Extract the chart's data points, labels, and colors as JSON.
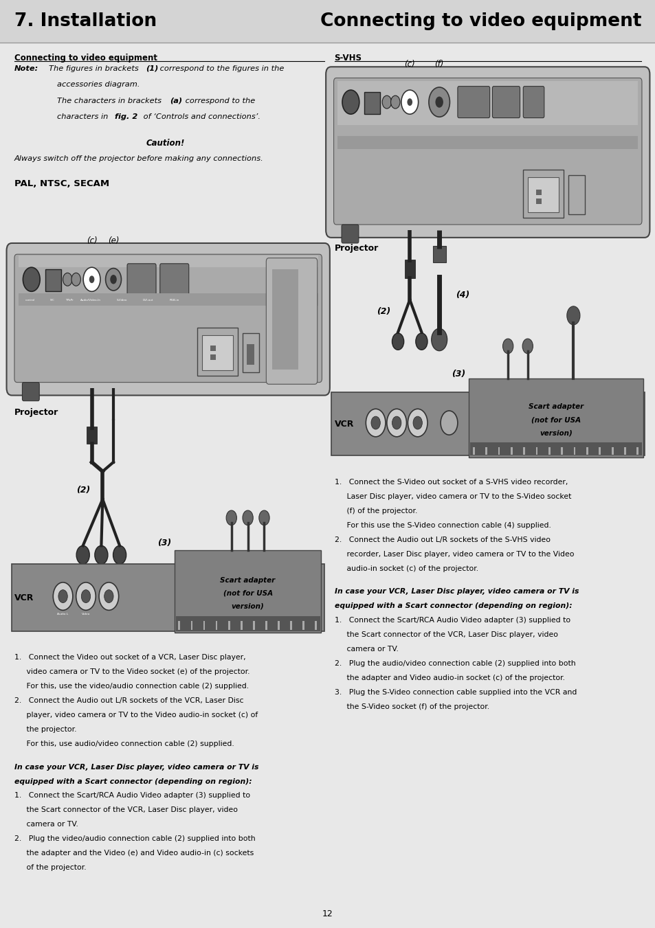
{
  "bg_color": "#e8e8e8",
  "page_width": 9.54,
  "page_height": 13.51,
  "header_left": "7. Installation",
  "header_right": "Connecting to video equipment",
  "section_title_left": "Connecting to video equipment",
  "section_title_right": "S-VHS",
  "pal_title": "PAL, NTSC, SECAM",
  "projector_label": "Projector",
  "vcr_label": "VCR",
  "scart_text_1": "Scart adapter",
  "scart_text_2": "(not for USA",
  "scart_text_3": "version)",
  "page_number": "12",
  "col_split": 0.505
}
